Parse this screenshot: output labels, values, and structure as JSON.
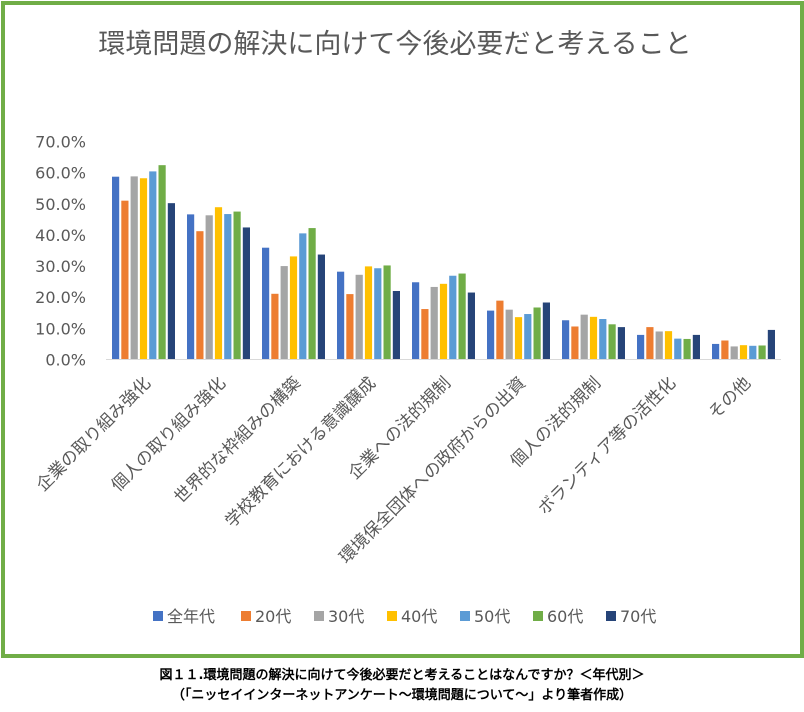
{
  "chart_data": {
    "type": "bar",
    "title": "環境問題の解決に向けて今後必要だと考えること",
    "categories": [
      "企業の取り組み強化",
      "個人の取り組み強化",
      "世界的な枠組みの構築",
      "学校教育における意識醸成",
      "企業への法的規制",
      "環境保全団体への政府からの出資",
      "個人の法的規制",
      "ボランティア等の活性化",
      "その他"
    ],
    "series": [
      {
        "name": "全年代",
        "color": "#4472c4",
        "values": [
          58.7,
          46.6,
          35.9,
          28.2,
          24.8,
          15.7,
          12.6,
          7.9,
          5.0
        ]
      },
      {
        "name": "20代",
        "color": "#ed7d31",
        "values": [
          51.0,
          41.2,
          21.1,
          21.0,
          16.2,
          18.9,
          10.6,
          10.4,
          6.1
        ]
      },
      {
        "name": "30代",
        "color": "#a5a5a5",
        "values": [
          58.8,
          46.3,
          30.0,
          27.2,
          23.3,
          16.0,
          14.4,
          9.0,
          4.2
        ]
      },
      {
        "name": "40代",
        "color": "#ffc000",
        "values": [
          58.2,
          48.9,
          33.1,
          29.9,
          24.3,
          13.6,
          13.7,
          9.1,
          4.6
        ]
      },
      {
        "name": "50代",
        "color": "#5b9bd5",
        "values": [
          60.4,
          46.7,
          40.5,
          29.3,
          26.9,
          14.6,
          13.0,
          6.7,
          4.4
        ]
      },
      {
        "name": "60代",
        "color": "#70ad47",
        "values": [
          62.4,
          47.5,
          42.2,
          30.2,
          27.6,
          16.7,
          11.3,
          6.6,
          4.5
        ]
      },
      {
        "name": "70代",
        "color": "#264478",
        "values": [
          50.2,
          42.4,
          33.7,
          22.0,
          21.5,
          18.3,
          10.4,
          7.9,
          9.5
        ]
      }
    ],
    "ylim": [
      0,
      70
    ],
    "yticks": [
      "0.0%",
      "10.0%",
      "20.0%",
      "30.0%",
      "40.0%",
      "50.0%",
      "60.0%",
      "70.0%"
    ],
    "legend_position": "bottom",
    "grid": false
  },
  "caption": {
    "line1": "図１１.環境問題の解決に向けて今後必要だと考えることはなんですか？＜年代別＞",
    "line2": "（「ニッセイインターネットアンケート～環境問題について～」より筆者作成）"
  }
}
